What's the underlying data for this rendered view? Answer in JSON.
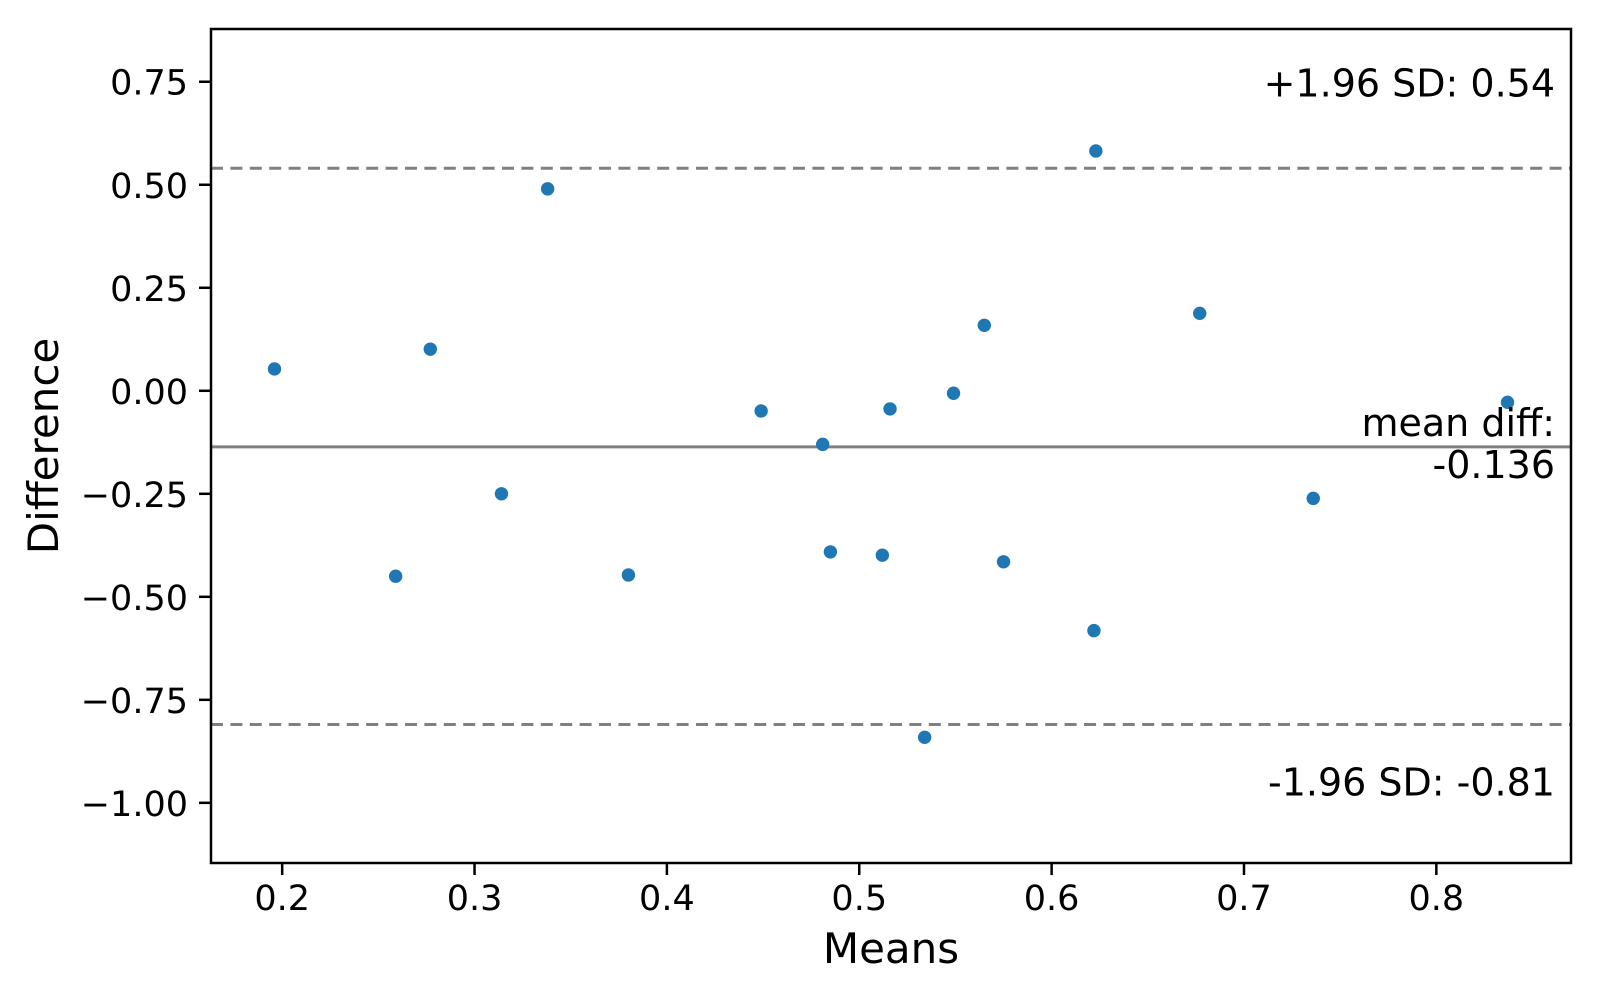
{
  "chart_data": {
    "type": "scatter",
    "title": "",
    "xlabel": "Means",
    "ylabel": "Difference",
    "xlim": [
      0.163,
      0.87
    ],
    "ylim": [
      -1.146,
      0.878
    ],
    "x_ticks": [
      0.2,
      0.3,
      0.4,
      0.5,
      0.6,
      0.7,
      0.8
    ],
    "y_ticks": [
      0.75,
      0.5,
      0.25,
      0.0,
      -0.25,
      -0.5,
      -0.75,
      -1.0
    ],
    "grid": false,
    "legend": null,
    "point_color": "#1f77b4",
    "line_color": "#808080",
    "points": [
      {
        "mean": 0.196,
        "diff": 0.053
      },
      {
        "mean": 0.259,
        "diff": -0.45
      },
      {
        "mean": 0.277,
        "diff": 0.101
      },
      {
        "mean": 0.314,
        "diff": -0.25
      },
      {
        "mean": 0.338,
        "diff": 0.49
      },
      {
        "mean": 0.38,
        "diff": -0.447
      },
      {
        "mean": 0.449,
        "diff": -0.049
      },
      {
        "mean": 0.481,
        "diff": -0.13
      },
      {
        "mean": 0.485,
        "diff": -0.391
      },
      {
        "mean": 0.512,
        "diff": -0.399
      },
      {
        "mean": 0.516,
        "diff": -0.044
      },
      {
        "mean": 0.534,
        "diff": -0.841
      },
      {
        "mean": 0.549,
        "diff": -0.006
      },
      {
        "mean": 0.565,
        "diff": 0.159
      },
      {
        "mean": 0.575,
        "diff": -0.415
      },
      {
        "mean": 0.622,
        "diff": -0.582
      },
      {
        "mean": 0.623,
        "diff": 0.582
      },
      {
        "mean": 0.677,
        "diff": 0.188
      },
      {
        "mean": 0.736,
        "diff": -0.261
      },
      {
        "mean": 0.837,
        "diff": -0.028
      }
    ],
    "lines": {
      "upper_loa": {
        "value": 0.54,
        "style": "dashed",
        "label": "+1.96 SD: 0.54"
      },
      "mean_diff": {
        "value": -0.136,
        "style": "solid",
        "label_line1": "mean diff:",
        "label_line2": "-0.136"
      },
      "lower_loa": {
        "value": -0.81,
        "style": "dashed",
        "label": "-1.96 SD: -0.81"
      }
    }
  }
}
